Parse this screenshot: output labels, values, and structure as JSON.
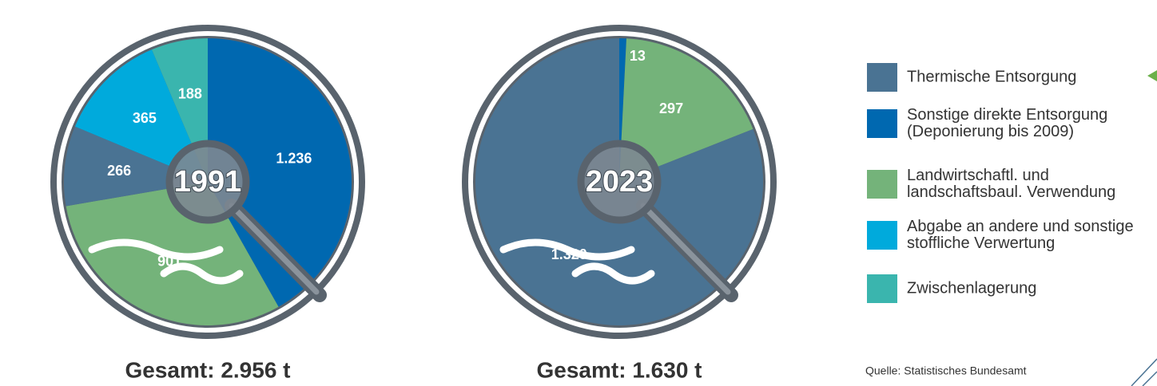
{
  "chart_data": [
    {
      "type": "pie",
      "label": "1991",
      "total": "Gesamt: 2.956 t",
      "values": [
        1236,
        901,
        266,
        365,
        188
      ],
      "value_labels": [
        "1.236",
        "901",
        "266",
        "365",
        "188"
      ],
      "colors": [
        "#0068b0",
        "#74b37a",
        "#4a7393",
        "#00aadc",
        "#3ab5ae"
      ]
    },
    {
      "type": "pie",
      "label": "2023",
      "total": "Gesamt: 1.630 t",
      "values": [
        13,
        297,
        1320
      ],
      "value_labels": [
        "13",
        "297",
        "1.320"
      ],
      "colors": [
        "#0068b0",
        "#74b37a",
        "#4a7393"
      ]
    }
  ],
  "legend": [
    {
      "name": [
        "Thermische Entsorgung"
      ],
      "color": "#4a7393"
    },
    {
      "name": [
        "Sonstige direkte Entsorgung",
        "(Deponierung bis 2009)"
      ],
      "color": "#0068b0"
    },
    {
      "name": [
        "Landwirtschaftl. und",
        "landschaftsbaul. Verwendung"
      ],
      "color": "#74b37a"
    },
    {
      "name": [
        "Abgabe an andere und sonstige",
        "stoffliche Verwertung"
      ],
      "color": "#00aadc"
    },
    {
      "name": [
        "Zwischenlagerung"
      ],
      "color": "#3ab5ae"
    }
  ],
  "source": "Quelle: Statistisches Bundesamt"
}
